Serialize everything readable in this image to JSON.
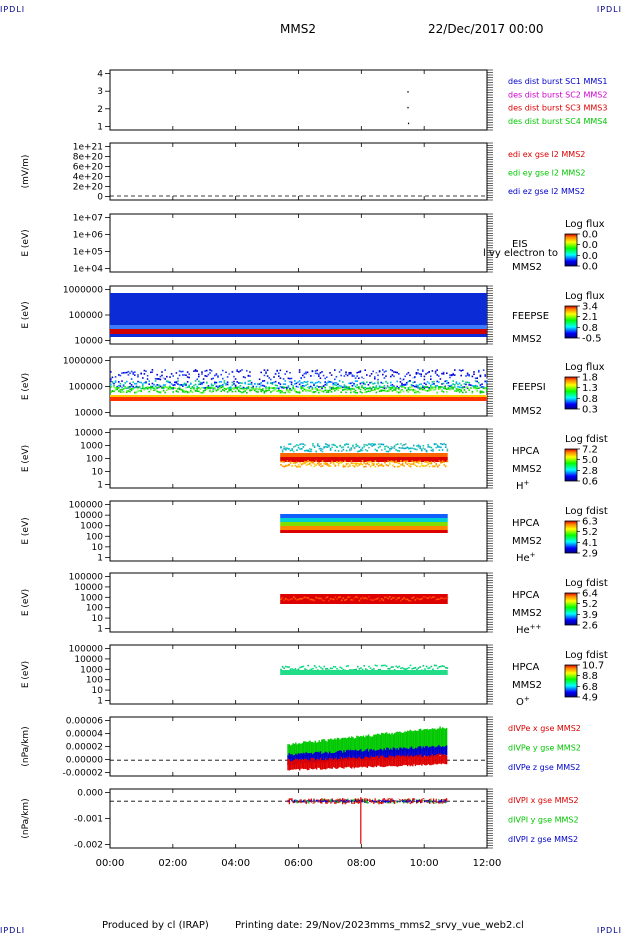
{
  "page": {
    "corner_label": "IPDLI",
    "spacecraft": "MMS2",
    "date": "22/Dec/2017 00:00",
    "footer": {
      "produced": "Produced by cl (IRAP)",
      "printing": "Printing date: 29/Nov/2023",
      "file": "mms_mms2_srvy_vue_web2.cl"
    }
  },
  "colors": {
    "red": "#dd0000",
    "green": "#00c800",
    "blue": "#0000cc",
    "magenta": "#cc00cc",
    "spectrogram_bg": "#0a2bd6"
  },
  "chart_data": [
    {
      "id": "burst",
      "type": "scatter",
      "y_ticks": [
        "4",
        "3",
        "2",
        "1"
      ],
      "ylim": [
        0.6,
        4.4
      ],
      "xlim": [
        "00:00",
        "12:00"
      ],
      "legend": [
        {
          "text": "des dist burst SC1 MMS1",
          "color": "#0000cc"
        },
        {
          "text": "des dist burst SC2 MMS2",
          "color": "#cc00cc"
        },
        {
          "text": "des dist burst SC3 MMS3",
          "color": "#dd0000"
        },
        {
          "text": "des dist burst SC4 MMS4",
          "color": "#00c800"
        }
      ],
      "points": [
        {
          "x": "09:28",
          "y": 3
        },
        {
          "x": "09:28",
          "y": 2
        },
        {
          "x": "09:29",
          "y": 1
        }
      ]
    },
    {
      "id": "edi",
      "type": "line",
      "ylabel": "(mV/m)",
      "y_ticks": [
        "1e+21",
        "8e+20",
        "6e+20",
        "4e+20",
        "2e+20",
        "0"
      ],
      "legend": [
        {
          "text": "edi ex gse l2 MMS2",
          "color": "#dd0000"
        },
        {
          "text": "edi ey gse l2 MMS2",
          "color": "#00c800"
        },
        {
          "text": "edi ez gse l2 MMS2",
          "color": "#0000cc"
        }
      ]
    },
    {
      "id": "eis",
      "type": "heatmap",
      "ylabel": "E (eV)",
      "y_ticks": [
        "1e+07",
        "1e+06",
        "1e+05",
        "1e+04"
      ],
      "label": [
        "EIS",
        "MMS2"
      ],
      "overlay_text": "l vy electron to",
      "cbar_title": "Log flux",
      "cbar_ticks": [
        "0.0",
        "0.0",
        "0.0",
        "0.0"
      ]
    },
    {
      "id": "feepse",
      "type": "heatmap",
      "ylabel": "E (eV)",
      "y_ticks": [
        "1000000",
        "100000",
        "10000"
      ],
      "label": [
        "FEEPSE",
        "MMS2"
      ],
      "cbar_title": "Log flux",
      "cbar_ticks": [
        "3.4",
        "2.1",
        "0.8",
        "-0.5"
      ],
      "time_range": [
        "00:00",
        "12:00"
      ]
    },
    {
      "id": "feepsi",
      "type": "heatmap",
      "ylabel": "E (eV)",
      "y_ticks": [
        "1000000",
        "100000",
        "10000"
      ],
      "label": [
        "FEEPSI",
        "MMS2"
      ],
      "cbar_title": "Log flux",
      "cbar_ticks": [
        "1.8",
        "1.3",
        "0.8",
        "0.3"
      ],
      "time_range": [
        "00:00",
        "12:00"
      ]
    },
    {
      "id": "hpca_h",
      "type": "heatmap",
      "ylabel": "E (eV)",
      "y_ticks": [
        "10000",
        "1000",
        "100",
        "10",
        "1"
      ],
      "label": [
        "HPCA",
        "MMS2",
        "H+"
      ],
      "cbar_title": "Log fdist",
      "cbar_ticks": [
        "7.2",
        "5.0",
        "2.8",
        "0.6"
      ],
      "time_range": [
        "05:25",
        "10:45"
      ]
    },
    {
      "id": "hpca_he",
      "type": "heatmap",
      "ylabel": "E (eV)",
      "y_ticks": [
        "100000",
        "10000",
        "1000",
        "100",
        "10",
        "1"
      ],
      "label": [
        "HPCA",
        "MMS2",
        "He+"
      ],
      "cbar_title": "Log fdist",
      "cbar_ticks": [
        "6.3",
        "5.2",
        "4.1",
        "2.9"
      ],
      "time_range": [
        "05:25",
        "10:45"
      ]
    },
    {
      "id": "hpca_hepp",
      "type": "heatmap",
      "ylabel": "E (eV)",
      "y_ticks": [
        "100000",
        "10000",
        "1000",
        "100",
        "10",
        "1"
      ],
      "label": [
        "HPCA",
        "MMS2",
        "He++"
      ],
      "cbar_title": "Log fdist",
      "cbar_ticks": [
        "6.4",
        "5.2",
        "3.9",
        "2.6"
      ],
      "time_range": [
        "05:25",
        "10:45"
      ]
    },
    {
      "id": "hpca_o",
      "type": "heatmap",
      "ylabel": "E (eV)",
      "y_ticks": [
        "100000",
        "10000",
        "1000",
        "100",
        "10",
        "1"
      ],
      "label": [
        "HPCA",
        "MMS2",
        "O+"
      ],
      "cbar_title": "Log fdist",
      "cbar_ticks": [
        "10.7",
        "8.8",
        "6.8",
        "4.9"
      ],
      "time_range": [
        "05:25",
        "10:45"
      ]
    },
    {
      "id": "divpe",
      "type": "line",
      "ylabel": "(nPa/km)",
      "y_ticks": [
        "0.00006",
        "0.00004",
        "0.00002",
        "0.00000",
        "-0.00002"
      ],
      "ylim": [
        -2.2e-05,
        6e-05
      ],
      "legend": [
        {
          "text": "dIVPe x gse MMS2",
          "color": "#dd0000"
        },
        {
          "text": "dIVPe y gse MMS2",
          "color": "#00c800"
        },
        {
          "text": "dIVPe z gse MMS2",
          "color": "#0000cc"
        }
      ],
      "time_range": [
        "05:40",
        "10:45"
      ]
    },
    {
      "id": "divpi",
      "type": "line",
      "ylabel": "(nPa/km)",
      "y_ticks": [
        "0.000",
        "-0.001",
        "-0.002"
      ],
      "ylim": [
        -0.0023,
        0.0006
      ],
      "legend": [
        {
          "text": "dIVPI x gse MMS2",
          "color": "#dd0000"
        },
        {
          "text": "dIVPI y gse MMS2",
          "color": "#00c800"
        },
        {
          "text": "dIVPI z gse MMS2",
          "color": "#0000cc"
        }
      ],
      "time_range": [
        "05:40",
        "10:45"
      ]
    }
  ],
  "x_axis": {
    "ticks": [
      "00:00",
      "02:00",
      "04:00",
      "06:00",
      "08:00",
      "10:00",
      "12:00"
    ]
  }
}
